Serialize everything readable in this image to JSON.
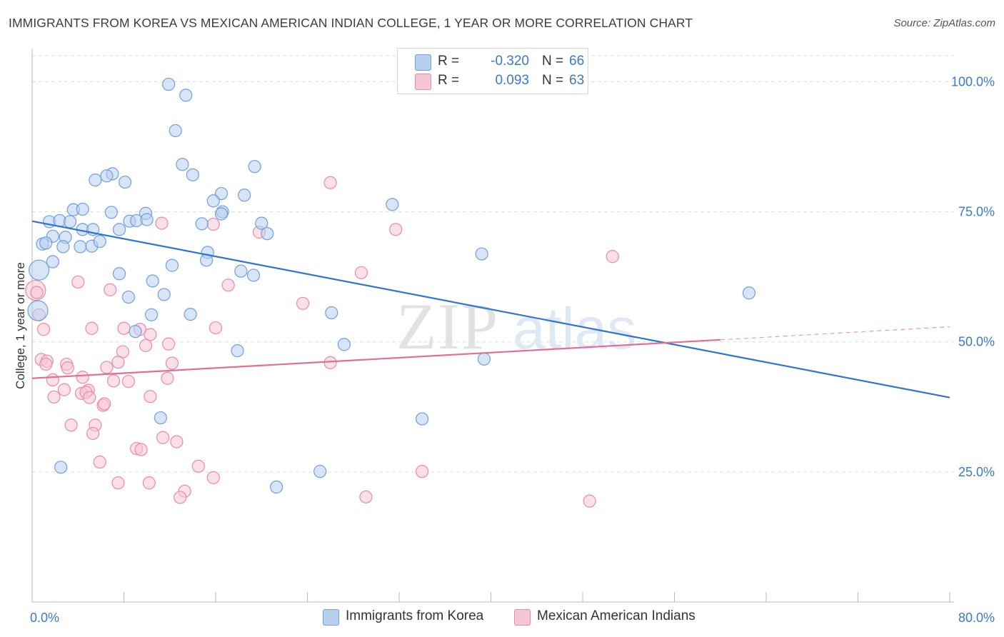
{
  "title": "IMMIGRANTS FROM KOREA VS MEXICAN AMERICAN INDIAN COLLEGE, 1 YEAR OR MORE CORRELATION CHART",
  "source": "Source: ZipAtlas.com",
  "watermark": {
    "zip": "ZIP",
    "atlas": "atlas"
  },
  "colors": {
    "blue_fill": "#b8d0f0",
    "blue_stroke": "#6f9fdc",
    "blue_line": "#2f74d0",
    "pink_fill": "#f7c6d5",
    "pink_stroke": "#e98aa8",
    "pink_line": "#e26e98",
    "grid": "#dddddd",
    "tick_text": "#3a78c9"
  },
  "legend": {
    "rows": [
      {
        "swatch": "blue",
        "r_label": "R =",
        "r_value": "-0.320",
        "n_label": "N =",
        "n_value": "66"
      },
      {
        "swatch": "pink",
        "r_label": "R =",
        "r_value": "0.093",
        "n_label": "N =",
        "n_value": "63"
      }
    ]
  },
  "bottom_legend": [
    {
      "swatch": "blue",
      "label": "Immigrants from Korea"
    },
    {
      "swatch": "pink",
      "label": "Mexican American Indians"
    }
  ],
  "chart_data": {
    "type": "scatter",
    "xlabel": "",
    "ylabel": "College, 1 year or more",
    "xlim": [
      0,
      80
    ],
    "ylim": [
      0,
      105
    ],
    "x_tick_labels": [
      {
        "value": 0,
        "label": "0.0%"
      },
      {
        "value": 80,
        "label": "80.0%"
      }
    ],
    "y_tick_labels": [
      {
        "value": 25,
        "label": "25.0%"
      },
      {
        "value": 50,
        "label": "50.0%"
      },
      {
        "value": 75,
        "label": "75.0%"
      },
      {
        "value": 100,
        "label": "100.0%"
      }
    ],
    "grid": true,
    "series": [
      {
        "name": "Immigrants from Korea",
        "color": "blue",
        "trend": {
          "x": [
            0,
            80
          ],
          "y": [
            73.2,
            39.3
          ]
        },
        "points": [
          [
            11.9,
            99.5
          ],
          [
            13.4,
            97.4
          ],
          [
            12.5,
            90.6
          ],
          [
            13.1,
            84.1
          ],
          [
            19.4,
            83.7
          ],
          [
            14.0,
            82.1
          ],
          [
            7.0,
            82.3
          ],
          [
            6.5,
            81.9
          ],
          [
            5.5,
            81.1
          ],
          [
            8.1,
            80.7
          ],
          [
            16.5,
            78.5
          ],
          [
            18.5,
            78.2
          ],
          [
            15.8,
            77.1
          ],
          [
            31.4,
            76.4
          ],
          [
            3.6,
            75.4
          ],
          [
            4.4,
            75.5
          ],
          [
            6.9,
            74.9
          ],
          [
            9.9,
            74.7
          ],
          [
            16.6,
            75.0
          ],
          [
            16.5,
            74.6
          ],
          [
            1.5,
            73.1
          ],
          [
            2.4,
            73.3
          ],
          [
            3.3,
            73.1
          ],
          [
            8.5,
            73.2
          ],
          [
            9.1,
            73.3
          ],
          [
            10.0,
            73.5
          ],
          [
            7.6,
            71.6
          ],
          [
            14.8,
            72.7
          ],
          [
            20.0,
            72.8
          ],
          [
            4.4,
            71.6
          ],
          [
            5.3,
            71.6
          ],
          [
            1.8,
            70.3
          ],
          [
            2.9,
            70.1
          ],
          [
            20.5,
            70.8
          ],
          [
            0.9,
            68.8
          ],
          [
            1.2,
            69.0
          ],
          [
            2.7,
            68.3
          ],
          [
            4.2,
            68.3
          ],
          [
            5.2,
            68.4
          ],
          [
            5.9,
            69.3
          ],
          [
            15.3,
            67.2
          ],
          [
            15.2,
            65.7
          ],
          [
            39.2,
            66.9
          ],
          [
            1.8,
            65.4
          ],
          [
            12.2,
            64.7
          ],
          [
            0.6,
            63.8
          ],
          [
            18.2,
            63.6
          ],
          [
            7.6,
            63.1
          ],
          [
            19.3,
            62.8
          ],
          [
            10.5,
            61.7
          ],
          [
            62.5,
            59.4
          ],
          [
            11.5,
            59.1
          ],
          [
            8.4,
            58.6
          ],
          [
            26.1,
            55.6
          ],
          [
            0.5,
            56.0
          ],
          [
            10.4,
            55.2
          ],
          [
            13.8,
            55.3
          ],
          [
            9.0,
            52.0
          ],
          [
            27.2,
            49.5
          ],
          [
            17.9,
            48.3
          ],
          [
            39.4,
            46.7
          ],
          [
            34.0,
            35.2
          ],
          [
            11.2,
            35.4
          ],
          [
            25.1,
            25.1
          ],
          [
            21.3,
            22.1
          ],
          [
            2.5,
            25.9
          ]
        ],
        "large_points": [
          [
            0.6,
            63.8
          ],
          [
            0.5,
            56.0
          ]
        ]
      },
      {
        "name": "Mexican American Indians",
        "color": "pink",
        "trend": {
          "x": [
            0,
            60
          ],
          "y": [
            43.0,
            50.4
          ]
        },
        "trend_dashed": {
          "x": [
            60,
            80
          ],
          "y": [
            50.4,
            52.9
          ]
        },
        "points": [
          [
            26.0,
            80.6
          ],
          [
            11.3,
            72.8
          ],
          [
            15.8,
            72.6
          ],
          [
            19.8,
            71.1
          ],
          [
            31.7,
            71.6
          ],
          [
            50.6,
            66.4
          ],
          [
            28.7,
            63.3
          ],
          [
            17.1,
            60.9
          ],
          [
            4.0,
            61.5
          ],
          [
            6.8,
            60.0
          ],
          [
            23.6,
            57.4
          ],
          [
            0.3,
            59.9
          ],
          [
            0.6,
            55.2
          ],
          [
            5.2,
            52.6
          ],
          [
            8.0,
            52.6
          ],
          [
            1.0,
            52.4
          ],
          [
            16.0,
            52.7
          ],
          [
            9.4,
            52.4
          ],
          [
            10.3,
            51.4
          ],
          [
            11.9,
            49.6
          ],
          [
            9.9,
            49.3
          ],
          [
            7.9,
            48.1
          ],
          [
            0.8,
            46.6
          ],
          [
            1.3,
            46.3
          ],
          [
            1.2,
            45.7
          ],
          [
            3.0,
            45.7
          ],
          [
            3.1,
            45.0
          ],
          [
            6.5,
            45.1
          ],
          [
            7.5,
            46.1
          ],
          [
            12.2,
            45.9
          ],
          [
            26.0,
            46.0
          ],
          [
            4.4,
            43.2
          ],
          [
            11.8,
            43.0
          ],
          [
            1.8,
            42.7
          ],
          [
            7.1,
            42.5
          ],
          [
            8.4,
            42.4
          ],
          [
            2.8,
            40.8
          ],
          [
            4.9,
            40.7
          ],
          [
            4.3,
            40.1
          ],
          [
            4.7,
            40.3
          ],
          [
            1.9,
            39.4
          ],
          [
            5.0,
            39.3
          ],
          [
            10.3,
            39.5
          ],
          [
            6.2,
            37.8
          ],
          [
            6.3,
            38.1
          ],
          [
            3.4,
            34.0
          ],
          [
            5.5,
            34.0
          ],
          [
            5.3,
            32.4
          ],
          [
            11.4,
            31.6
          ],
          [
            12.6,
            30.8
          ],
          [
            9.1,
            29.5
          ],
          [
            9.5,
            29.3
          ],
          [
            5.9,
            26.9
          ],
          [
            14.5,
            26.1
          ],
          [
            15.8,
            23.9
          ],
          [
            34.0,
            25.1
          ],
          [
            7.5,
            22.9
          ],
          [
            10.2,
            22.9
          ],
          [
            13.3,
            21.3
          ],
          [
            12.9,
            20.1
          ],
          [
            29.1,
            20.2
          ],
          [
            48.6,
            19.4
          ],
          [
            0.4,
            59.5
          ]
        ],
        "large_points": [
          [
            0.3,
            59.9
          ]
        ]
      }
    ]
  }
}
